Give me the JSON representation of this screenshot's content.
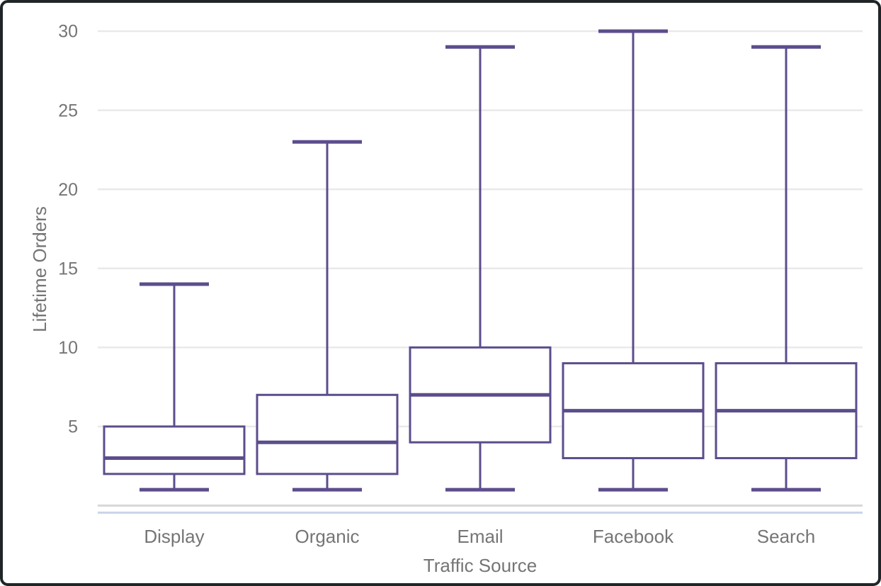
{
  "chart_data": {
    "type": "boxplot",
    "title": "",
    "xlabel": "Traffic Source",
    "ylabel": "Lifetime Orders",
    "categories": [
      "Display",
      "Organic",
      "Email",
      "Facebook",
      "Search"
    ],
    "series": [
      {
        "name": "Display",
        "min": 1,
        "q1": 2,
        "median": 3,
        "q3": 5,
        "max": 14
      },
      {
        "name": "Organic",
        "min": 1,
        "q1": 2,
        "median": 4,
        "q3": 7,
        "max": 23
      },
      {
        "name": "Email",
        "min": 1,
        "q1": 4,
        "median": 7,
        "q3": 10,
        "max": 29
      },
      {
        "name": "Facebook",
        "min": 1,
        "q1": 3,
        "median": 6,
        "q3": 9,
        "max": 30
      },
      {
        "name": "Search",
        "min": 1,
        "q1": 3,
        "median": 6,
        "q3": 9,
        "max": 29
      }
    ],
    "yticks": [
      5,
      10,
      15,
      20,
      25,
      30
    ],
    "ylim": [
      0,
      30
    ],
    "grid": "horizontal",
    "legend": "none",
    "colors": {
      "box_stroke": "#5c4d8c",
      "box_fill": "#ffffff",
      "grid": "#e9e9e9",
      "axis_line": "#d8d8d8",
      "axis_accent_line": "#cbd6e8",
      "label_text": "#757575",
      "card_border": "#202527",
      "background": "#ffffff"
    }
  }
}
